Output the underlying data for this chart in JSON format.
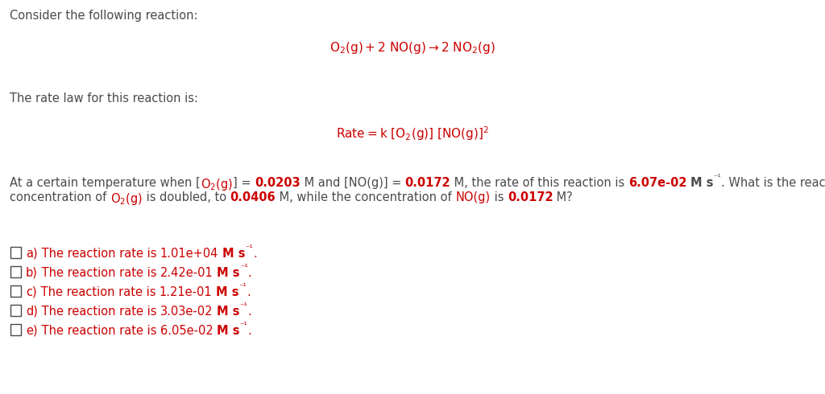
{
  "bg_color": "#ffffff",
  "text_color": "#4a4a4a",
  "red_color": "#cc0000",
  "fig_width": 10.24,
  "fig_height": 4.9,
  "dpi": 100,
  "font_size": 10.5,
  "font_family": "DejaVu Sans"
}
